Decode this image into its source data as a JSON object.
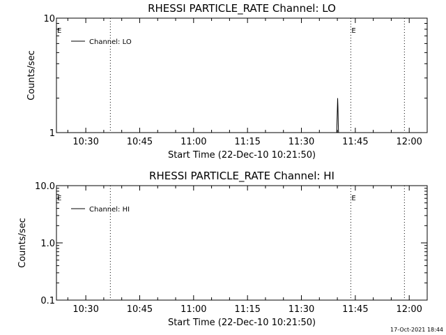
{
  "footer": {
    "timestamp": "17-Oct-2021 18:44"
  },
  "chart_data": [
    {
      "type": "line",
      "title": "RHESSI PARTICLE_RATE Channel: LO",
      "xlabel": "Start Time (22-Dec-10 10:21:50)",
      "ylabel": "Counts/sec",
      "yscale": "log",
      "ylim": [
        1,
        10
      ],
      "ytick_labels": [
        "1",
        "10"
      ],
      "xlim": [
        "10:21:50",
        "12:05:00"
      ],
      "xtick_labels": [
        "10:30",
        "10:45",
        "11:00",
        "11:15",
        "11:30",
        "11:45",
        "12:00"
      ],
      "legend": {
        "position": "top-left",
        "entries": [
          "Channel: LO"
        ]
      },
      "markers": [
        {
          "time": "10:36:50",
          "label": ""
        },
        {
          "time": "11:43:45",
          "label": "E"
        },
        {
          "time": "11:58:40",
          "label": ""
        }
      ],
      "start_marker_label": "E",
      "series": [
        {
          "name": "Channel: LO",
          "x": [
            "11:39:50",
            "11:40:00",
            "11:40:05",
            "11:40:10",
            "11:40:15",
            "11:40:20"
          ],
          "values": [
            1,
            1.6,
            2,
            1.7,
            1.2,
            1
          ]
        }
      ]
    },
    {
      "type": "line",
      "title": "RHESSI PARTICLE_RATE Channel: HI",
      "xlabel": "Start Time (22-Dec-10 10:21:50)",
      "ylabel": "Counts/sec",
      "yscale": "log",
      "ylim": [
        0.1,
        10
      ],
      "ytick_labels": [
        "0.1",
        "1.0",
        "10.0"
      ],
      "xlim": [
        "10:21:50",
        "12:05:00"
      ],
      "xtick_labels": [
        "10:30",
        "10:45",
        "11:00",
        "11:15",
        "11:30",
        "11:45",
        "12:00"
      ],
      "legend": {
        "position": "top-left",
        "entries": [
          "Channel: HI"
        ]
      },
      "markers": [
        {
          "time": "10:36:50",
          "label": ""
        },
        {
          "time": "11:43:45",
          "label": "E"
        },
        {
          "time": "11:58:40",
          "label": ""
        }
      ],
      "start_marker_label": "E",
      "series": [
        {
          "name": "Channel: HI",
          "x": [],
          "values": []
        }
      ]
    }
  ]
}
